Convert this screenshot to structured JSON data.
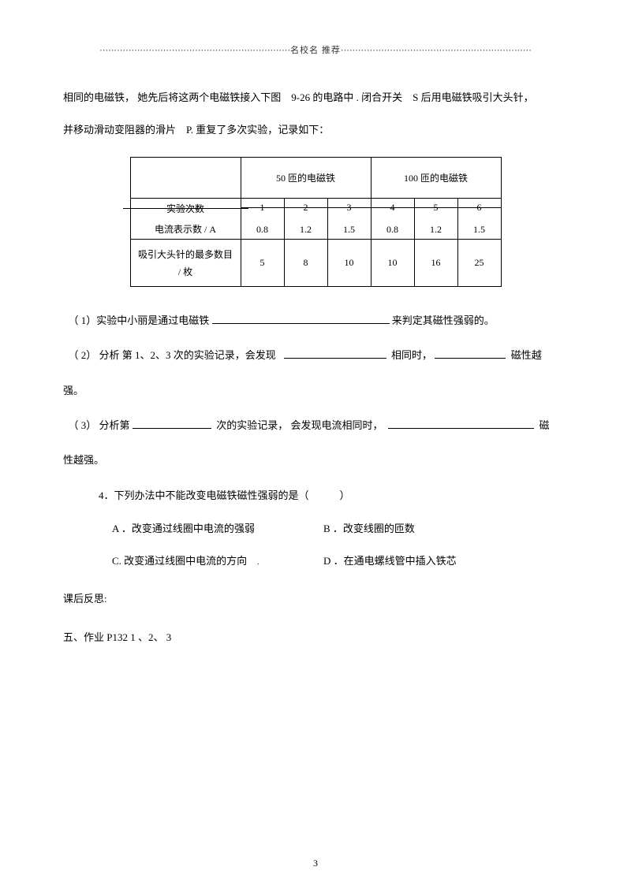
{
  "header": {
    "dots_left": "⋯⋯⋯⋯⋯⋯⋯⋯⋯⋯⋯⋯⋯⋯⋯⋯⋯⋯⋯⋯⋯⋯",
    "title": "名校名 推荐",
    "dots_right": "⋯⋯⋯⋯⋯⋯⋯⋯⋯⋯⋯⋯⋯⋯⋯⋯⋯⋯⋯⋯⋯⋯"
  },
  "intro": {
    "line1_a": "相同的电磁铁，  她先后将这两个电磁铁接入下图",
    "line1_b": "9-26 的电路中 . 闭合开关",
    "line1_c": "S 后用电磁铁吸引大头针，",
    "line2_a": "并移动滑动变阻器的滑片",
    "line2_b": "P. 重复了多次实验，记录如下："
  },
  "table": {
    "header_50": "50 匝的电磁铁",
    "header_100": "100 匝的电磁铁",
    "row_exp_label": "实验次数",
    "row_exp": [
      "1",
      "2",
      "3",
      "4",
      "5",
      "6"
    ],
    "row_current_label": "电流表示数 /   A",
    "row_current": [
      "0.8",
      "1.2",
      "1.5",
      "0.8",
      "1.2",
      "1.5"
    ],
    "row_pins_label1": "吸引大头针的最多数目",
    "row_pins_label2": "/ 枚",
    "row_pins": [
      "5",
      "8",
      "10",
      "10",
      "16",
      "25"
    ]
  },
  "questions": {
    "q1_a": "（ 1）实验中小丽是通过电磁铁",
    "q1_b": "来判定其磁性强弱的。",
    "q2_a": "（ 2） 分析 第  1、2、3 次的实验记录，会发现",
    "q2_b": "相同时，",
    "q2_c": "磁性越",
    "q2_end": "强。",
    "q3_a": "（ 3） 分析第",
    "q3_b": "次的实验记录，  会发现电流相同时，",
    "q3_c": "磁",
    "q3_end": "性越强。",
    "q4": "4．下列办法中不能改变电磁铁磁性强弱的是（",
    "q4_paren": "）",
    "optA": "A ．改变通过线圈中电流的强弱",
    "optB": "B ．改变线圈的匝数",
    "optC": "C. 改变通过线圈中电流的方向",
    "optD": "D ．在通电螺线管中插入铁芯"
  },
  "footer": {
    "reflect": "课后反思:",
    "hw": "五、作业  P132 1 、2、 3"
  },
  "blanks": {
    "w1": "225px",
    "w2": "130px",
    "w3": "90px",
    "w4": "100px",
    "w5": "185px"
  },
  "page_number": "3",
  "colors": {
    "text": "#000000",
    "bg": "#ffffff"
  }
}
